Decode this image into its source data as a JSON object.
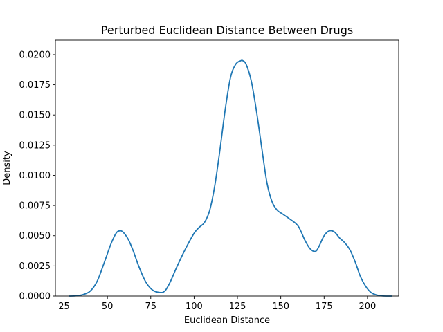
{
  "chart_data": {
    "type": "line",
    "title": "Perturbed Euclidean Distance Between Drugs",
    "xlabel": "Euclidean Distance",
    "ylabel": "Density",
    "xlim": [
      20,
      218
    ],
    "ylim": [
      0,
      0.0212
    ],
    "xticks": [
      25,
      50,
      75,
      100,
      125,
      150,
      175,
      200
    ],
    "xtick_labels": [
      "25",
      "50",
      "75",
      "100",
      "125",
      "150",
      "175",
      "200"
    ],
    "yticks": [
      0,
      0.0025,
      0.005,
      0.0075,
      0.01,
      0.0125,
      0.015,
      0.0175,
      0.02
    ],
    "ytick_labels": [
      "0.0000",
      "0.0025",
      "0.0050",
      "0.0075",
      "0.0100",
      "0.0125",
      "0.0150",
      "0.0175",
      "0.0200"
    ],
    "grid": false,
    "series": [
      {
        "color": "#1f77b4",
        "x": [
          28,
          32,
          36,
          40,
          44,
          48,
          52,
          55,
          57,
          59,
          62,
          65,
          68,
          72,
          76,
          80,
          83,
          86,
          90,
          95,
          100,
          103,
          106,
          109,
          112,
          115,
          118,
          121,
          124,
          127,
          128,
          130,
          133,
          136,
          139,
          142,
          145,
          148,
          151,
          155,
          160,
          164,
          167,
          170,
          172,
          175,
          178,
          181,
          184,
          187,
          190,
          193,
          196,
          199,
          202,
          205,
          208,
          211,
          214
        ],
        "y": [
          0.0,
          2e-05,
          0.00012,
          0.0004,
          0.0012,
          0.0027,
          0.0043,
          0.0052,
          0.0054,
          0.0053,
          0.0047,
          0.0037,
          0.0025,
          0.0012,
          0.0005,
          0.0003,
          0.0004,
          0.0011,
          0.0024,
          0.0039,
          0.0052,
          0.0057,
          0.0061,
          0.0071,
          0.0092,
          0.0122,
          0.0155,
          0.0181,
          0.0192,
          0.0195,
          0.0195,
          0.0192,
          0.0178,
          0.0153,
          0.0123,
          0.0094,
          0.0078,
          0.0071,
          0.0068,
          0.0064,
          0.0058,
          0.0046,
          0.0039,
          0.0037,
          0.0041,
          0.005,
          0.0054,
          0.0053,
          0.0048,
          0.0044,
          0.0038,
          0.0028,
          0.0016,
          0.0008,
          0.0003,
          0.0001,
          2e-05,
          0.0,
          0.0
        ]
      }
    ]
  }
}
